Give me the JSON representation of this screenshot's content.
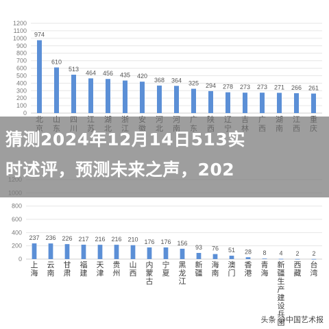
{
  "chart_data": [
    {
      "type": "bar",
      "categories": [
        "北京",
        "山东",
        "四川",
        "江苏",
        "湖北",
        "浙江",
        "安徽",
        "河北",
        "河南",
        "广东",
        "陕西",
        "辽宁",
        "吉林",
        "广西",
        "湖南",
        "江西",
        "重庆"
      ],
      "values": [
        974,
        610,
        513,
        464,
        456,
        435,
        420,
        368,
        364,
        325,
        294,
        278,
        273,
        273,
        271,
        266,
        261
      ],
      "yticks": [
        0,
        100,
        200,
        300,
        400,
        500,
        600,
        700,
        800,
        900,
        1000,
        1100,
        1200
      ],
      "ylim": [
        0,
        1200
      ],
      "grid": true,
      "bar_color": "#5b8fd6",
      "title": "",
      "xlabel": "",
      "ylabel": ""
    },
    {
      "type": "bar",
      "categories": [
        "上海",
        "云南",
        "甘肃",
        "福建",
        "天津",
        "贵州",
        "山西",
        "内蒙古",
        "宁夏",
        "黑龙江",
        "新疆",
        "海南",
        "澳门",
        "香港",
        "青海",
        "新疆生产建设兵团",
        "西藏",
        "台湾"
      ],
      "values": [
        237,
        236,
        226,
        217,
        216,
        216,
        210,
        176,
        176,
        156,
        93,
        76,
        51,
        28,
        8,
        4,
        2,
        2
      ],
      "yticks": [
        0,
        200,
        400,
        600,
        800,
        1000,
        1200
      ],
      "ylim": [
        0,
        1200
      ],
      "grid": true,
      "bar_color": "#5b8fd6",
      "title": "",
      "xlabel": "",
      "ylabel": ""
    }
  ],
  "banner": {
    "line1": "猜测2024年12月14日513实",
    "line2": "时述评，预测未来之声，202"
  },
  "watermark": "头条 @中国艺术报"
}
